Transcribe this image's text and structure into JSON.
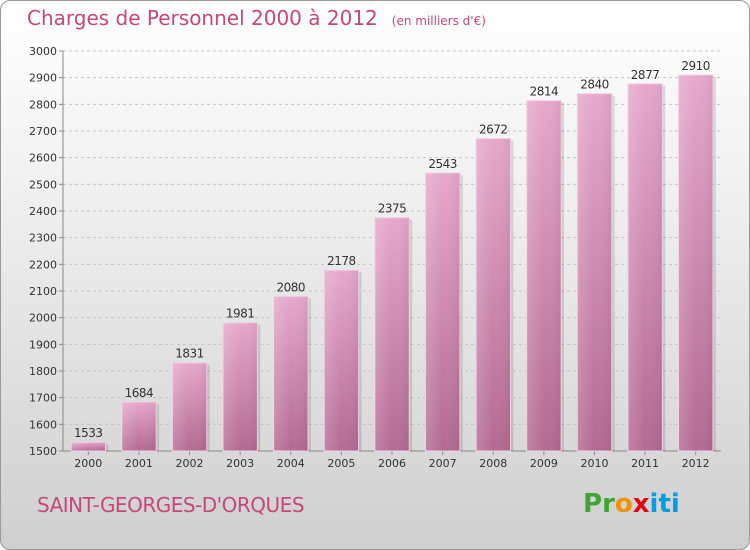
{
  "chart_data": {
    "type": "bar",
    "title": "Charges de Personnel 2000 à 2012",
    "subtitle": "(en milliers d'€)",
    "categories": [
      "2000",
      "2001",
      "2002",
      "2003",
      "2004",
      "2005",
      "2006",
      "2007",
      "2008",
      "2009",
      "2010",
      "2011",
      "2012"
    ],
    "values": [
      1533,
      1684,
      1831,
      1981,
      2080,
      2178,
      2375,
      2543,
      2672,
      2814,
      2840,
      2877,
      2910
    ],
    "ylim": [
      1500,
      3000
    ],
    "yticks": [
      1500,
      1600,
      1700,
      1800,
      1900,
      2000,
      2100,
      2200,
      2300,
      2400,
      2500,
      2600,
      2700,
      2800,
      2900,
      3000
    ],
    "grid": true,
    "xlabel": "",
    "ylabel": "",
    "bar_color": "#d989b4"
  },
  "commune": "SAINT-GEORGES-D'ORQUES",
  "logo": {
    "letters": [
      "P",
      "r",
      "o",
      "x",
      "i",
      "t",
      "i"
    ],
    "colors": [
      "#3fa535",
      "#3fa535",
      "#f39200",
      "#e30613",
      "#009fe3",
      "#009fe3",
      "#009fe3"
    ]
  }
}
